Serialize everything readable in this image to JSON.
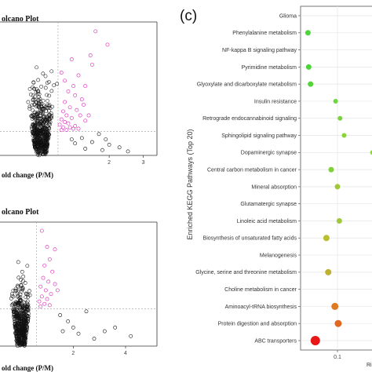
{
  "figure": {
    "panel_c_label": "(c)"
  },
  "chart_data": [
    {
      "type": "scatter",
      "title": "olcano Plot",
      "xlabel": "old change (P/M)",
      "ylabel": "",
      "x_ticks": [
        "2",
        "3"
      ],
      "xlim": [
        -1.2,
        3.4
      ],
      "grid": false,
      "threshold_lines": {
        "vertical_x": 0.5,
        "horizontal_y": 0.18
      },
      "series": [
        {
          "color": "#000000",
          "marker": "open-circle",
          "description_points": "non-significant"
        },
        {
          "color": "#e040c0",
          "marker": "open-circle",
          "description_points": "significant"
        }
      ],
      "points_significant": [
        [
          1.6,
          0.93
        ],
        [
          1.95,
          0.83
        ],
        [
          1.45,
          0.75
        ],
        [
          1.5,
          0.68
        ],
        [
          0.9,
          0.72
        ],
        [
          1.1,
          0.6
        ],
        [
          0.95,
          0.52
        ],
        [
          1.3,
          0.52
        ],
        [
          0.8,
          0.48
        ],
        [
          1.0,
          0.45
        ],
        [
          1.2,
          0.42
        ],
        [
          0.7,
          0.4
        ],
        [
          0.85,
          0.36
        ],
        [
          1.05,
          0.34
        ],
        [
          0.65,
          0.33
        ],
        [
          0.75,
          0.3
        ],
        [
          0.9,
          0.28
        ],
        [
          1.15,
          0.3
        ],
        [
          0.6,
          0.27
        ],
        [
          0.7,
          0.25
        ],
        [
          0.8,
          0.24
        ],
        [
          1.0,
          0.22
        ],
        [
          1.3,
          0.26
        ],
        [
          0.55,
          0.23
        ],
        [
          0.65,
          0.21
        ],
        [
          0.95,
          0.2
        ],
        [
          1.1,
          0.2
        ],
        [
          0.6,
          0.19
        ],
        [
          0.75,
          0.19
        ],
        [
          0.85,
          0.21
        ],
        [
          1.4,
          0.3
        ],
        [
          1.25,
          0.38
        ],
        [
          0.7,
          0.56
        ],
        [
          0.6,
          0.62
        ]
      ],
      "points_nonsignificant_extra": [
        [
          1.7,
          0.16
        ],
        [
          1.9,
          0.12
        ],
        [
          2.0,
          0.08
        ],
        [
          2.3,
          0.06
        ],
        [
          1.5,
          0.1
        ],
        [
          1.2,
          0.13
        ],
        [
          0.9,
          0.12
        ],
        [
          1.0,
          0.09
        ],
        [
          1.8,
          0.04
        ],
        [
          2.55,
          0.03
        ],
        [
          1.3,
          0.05
        ]
      ]
    },
    {
      "type": "scatter",
      "title": "olcano Plot",
      "xlabel": "old change (P/M)",
      "ylabel": "",
      "x_ticks": [
        "2",
        "4"
      ],
      "xlim": [
        -0.8,
        5.2
      ],
      "grid": false,
      "threshold_lines": {
        "vertical_x": 0.6,
        "horizontal_y": 0.3
      },
      "series": [
        {
          "color": "#000000",
          "marker": "open-circle",
          "description_points": "non-significant"
        },
        {
          "color": "#e040c0",
          "marker": "open-circle",
          "description_points": "significant"
        }
      ],
      "points_significant": [
        [
          0.8,
          0.93
        ],
        [
          1.3,
          0.78
        ],
        [
          1.0,
          0.8
        ],
        [
          1.1,
          0.7
        ],
        [
          0.9,
          0.65
        ],
        [
          1.2,
          0.6
        ],
        [
          0.85,
          0.55
        ],
        [
          1.05,
          0.52
        ],
        [
          1.3,
          0.5
        ],
        [
          0.75,
          0.48
        ],
        [
          0.95,
          0.45
        ],
        [
          1.15,
          0.42
        ],
        [
          0.8,
          0.4
        ],
        [
          1.0,
          0.38
        ],
        [
          0.7,
          0.36
        ],
        [
          1.4,
          0.45
        ],
        [
          0.9,
          0.34
        ],
        [
          1.1,
          0.33
        ],
        [
          0.75,
          0.32
        ]
      ],
      "points_nonsignificant_extra": [
        [
          2.5,
          0.28
        ],
        [
          3.6,
          0.15
        ],
        [
          3.2,
          0.12
        ],
        [
          2.2,
          0.1
        ],
        [
          1.8,
          0.2
        ],
        [
          2.0,
          0.15
        ],
        [
          1.5,
          0.25
        ],
        [
          4.2,
          0.08
        ],
        [
          2.8,
          0.06
        ],
        [
          1.6,
          0.12
        ]
      ]
    },
    {
      "type": "scatter",
      "title": "",
      "xlabel": "Ri",
      "ylabel": "Enriched KEGG Pathways (Top 20)",
      "x_ticks": [
        "0.1"
      ],
      "xlim": [
        0.0,
        0.2
      ],
      "grid": true,
      "categories": [
        "Glioma",
        "Phenylalanine metabolism",
        "NF-kappa B signaling pathway",
        "Pyrimidine metabolism",
        "Glyoxylate and dicarboxylate metabolism",
        "Insulin resistance",
        "Retrograde endocannabinoid signaling",
        "Sphingolipid signaling pathway",
        "Dopaminergic synapse",
        "Central carbon metabolism in cancer",
        "Mineral absorption",
        "Glutamatergic synapse",
        "Linoleic acid metabolism",
        "Biosynthesis of unsaturated fatty acids",
        "Melanogenesis",
        "Glycine, serine and threonine metabolism",
        "Choline metabolism in cancer",
        "Aminoacyl-tRNA biosynthesis",
        "Protein digestion and absorption",
        "ABC transporters"
      ],
      "points": [
        {
          "x": 0.02,
          "size": 3.5,
          "color": "#4cd43a"
        },
        {
          "x": 0.022,
          "size": 3.5,
          "color": "#4cd43a"
        },
        {
          "x": 0.027,
          "size": 3.5,
          "color": "#55d43a"
        },
        {
          "x": 0.095,
          "size": 3.0,
          "color": "#6ad83a"
        },
        {
          "x": 0.107,
          "size": 3.0,
          "color": "#78d43a"
        },
        {
          "x": 0.118,
          "size": 3.0,
          "color": "#88d43a"
        },
        {
          "x": 0.195,
          "size": 3.0,
          "color": "#8cd43a"
        },
        {
          "x": 0.083,
          "size": 3.5,
          "color": "#80d03a"
        },
        {
          "x": 0.1,
          "size": 3.5,
          "color": "#a0c838"
        },
        {
          "x": 0.105,
          "size": 3.5,
          "color": "#a0c838"
        },
        {
          "x": 0.07,
          "size": 4.0,
          "color": "#b8c030"
        },
        {
          "x": 0.075,
          "size": 4.0,
          "color": "#c0b030"
        },
        {
          "x": 0.093,
          "size": 4.5,
          "color": "#e07820"
        },
        {
          "x": 0.102,
          "size": 4.5,
          "color": "#e06820"
        },
        {
          "x": 0.04,
          "size": 6.0,
          "color": "#e81818"
        }
      ],
      "point_rows": [
        1,
        3,
        4,
        5,
        6,
        7,
        8,
        9,
        10,
        12,
        13,
        15,
        17,
        18,
        19
      ]
    }
  ]
}
